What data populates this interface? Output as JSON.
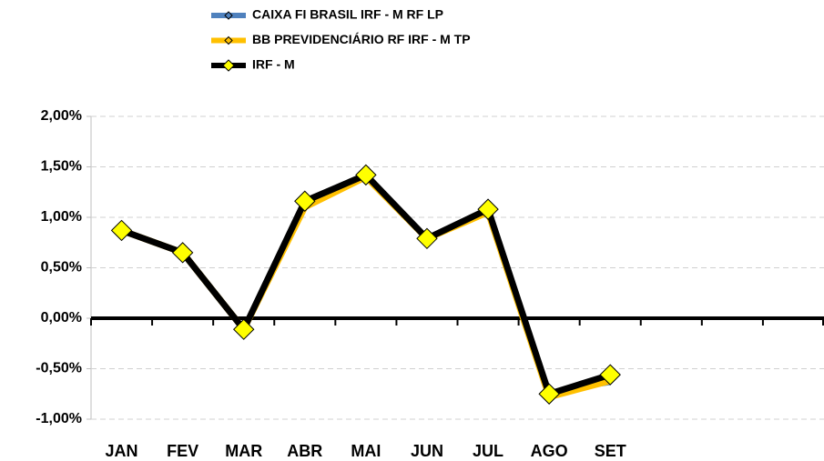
{
  "chart_data": {
    "type": "line",
    "categories": [
      "JAN",
      "FEV",
      "MAR",
      "ABR",
      "MAI",
      "JUN",
      "JUL",
      "AGO",
      "SET",
      null,
      null,
      null
    ],
    "series": [
      {
        "name": "CAIXA FI BRASIL IRF - M RF LP",
        "color": "#4f81bd",
        "values": [
          0.87,
          0.66,
          -0.1,
          1.12,
          1.41,
          0.8,
          1.05,
          -0.73,
          -0.64,
          null,
          null,
          null
        ]
      },
      {
        "name": "BB PREVIDENCIÁRIO RF IRF - M TP",
        "color": "#ffc000",
        "values": [
          0.87,
          0.65,
          -0.11,
          1.1,
          1.4,
          0.79,
          1.05,
          -0.78,
          -0.62,
          null,
          null,
          null
        ]
      },
      {
        "name": "IRF - M",
        "color": "#000000",
        "marker_color": "#ffff00",
        "values": [
          0.87,
          0.65,
          -0.11,
          1.16,
          1.42,
          0.79,
          1.08,
          -0.75,
          -0.56,
          null,
          null,
          null
        ]
      }
    ],
    "ylim": [
      -1,
      2
    ],
    "yticks": [
      {
        "value": -1,
        "label": "-1,00%"
      },
      {
        "value": -0.5,
        "label": "-0,50%"
      },
      {
        "value": 0,
        "label": "0,00%"
      },
      {
        "value": 0.5,
        "label": "0,50%"
      },
      {
        "value": 1,
        "label": "1,00%"
      },
      {
        "value": 1.5,
        "label": "1,50%"
      },
      {
        "value": 2,
        "label": "2,00%"
      }
    ],
    "grid": true
  }
}
